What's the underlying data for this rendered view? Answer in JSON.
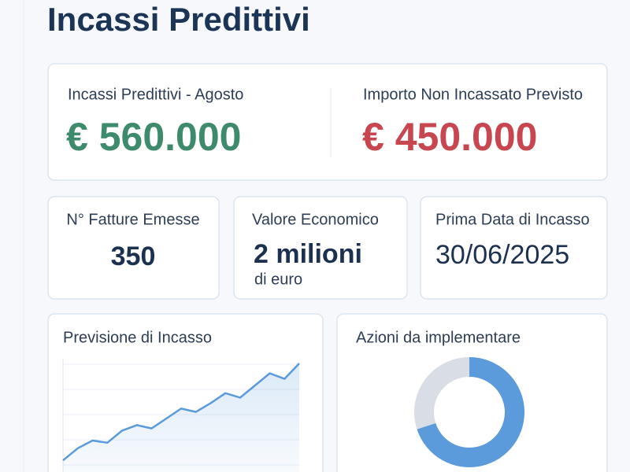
{
  "header": {
    "title": "Incassi Predittivi"
  },
  "summary": [
    {
      "label": "Incassi Predittivi - Agosto",
      "value": "€ 560.000",
      "color": "#3d8a6c"
    },
    {
      "label": "Importo Non Incassato Previsto",
      "value": "€ 450.000",
      "color": "#c8464f"
    }
  ],
  "cards": [
    {
      "label": "N° Fatture Emesse",
      "value": "350"
    },
    {
      "label": "Valore Economico",
      "value": "2 milioni",
      "note": "di euro"
    },
    {
      "label": "Prima Data di Incasso",
      "value": "30/06/2025"
    }
  ],
  "forecast_chart": {
    "type": "line",
    "title": "Previsione di Incasso",
    "values": [
      7,
      18,
      25,
      23,
      34,
      39,
      36,
      45,
      54,
      51,
      59,
      68,
      64,
      75,
      86,
      81,
      95
    ],
    "ylim": [
      0,
      100
    ],
    "color": "#5b9bdc",
    "grid": true
  },
  "actions_chart": {
    "type": "pie",
    "title": "Azioni da implementare",
    "values": [
      70,
      30
    ],
    "colors": [
      "#5b9bdc",
      "#d9dee6"
    ]
  }
}
